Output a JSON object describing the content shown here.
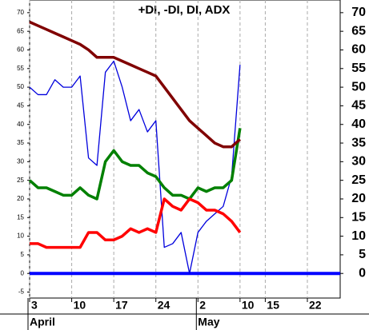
{
  "chart_data": {
    "type": "line",
    "title": "+DI, -DI, DI, ADX",
    "x": [
      0,
      1,
      2,
      3,
      4,
      5,
      6,
      7,
      8,
      9,
      10,
      11,
      12,
      13,
      14,
      15,
      16,
      17,
      18,
      19,
      20,
      21,
      22,
      23,
      24,
      25
    ],
    "series": [
      {
        "color": "#0000dd",
        "values": [
          50,
          48,
          48,
          52,
          50,
          50,
          53,
          31,
          29,
          54,
          57,
          50,
          41,
          44,
          38,
          41,
          7,
          8,
          11,
          0,
          11,
          14,
          16,
          18,
          26,
          56
        ],
        "width": 1.3
      },
      {
        "color": "#008000",
        "values": [
          25,
          23,
          23,
          22,
          21,
          21,
          23,
          21,
          20,
          30,
          33,
          30,
          29,
          29,
          27,
          26,
          23,
          21,
          21,
          20,
          23,
          22,
          23,
          23,
          25,
          39
        ],
        "width": 3.5
      },
      {
        "color": "#ff0000",
        "values": [
          8,
          8,
          7,
          7,
          7,
          7,
          7,
          11,
          11,
          9,
          9,
          10,
          12,
          11,
          12,
          11,
          20,
          18,
          17,
          20,
          19,
          17,
          17,
          16,
          14,
          11
        ],
        "width": 3.5
      },
      {
        "color": "#800000",
        "values": [
          67.5,
          66.5,
          65.5,
          64.5,
          63.5,
          62.5,
          61.5,
          60,
          58,
          58,
          58,
          57,
          56,
          55,
          54,
          53,
          50,
          47,
          44,
          41,
          39,
          37,
          35,
          34,
          34,
          36
        ],
        "width": 3.5
      }
    ],
    "reference_line": {
      "value": 0,
      "color": "#0000ff"
    },
    "xlim": [
      0,
      36.9
    ],
    "xticks": [
      {
        "value": 0,
        "label": "3"
      },
      {
        "value": 5,
        "label": "10"
      },
      {
        "value": 10,
        "label": "17"
      },
      {
        "value": 15,
        "label": "24"
      },
      {
        "value": 20,
        "label": "2"
      },
      {
        "value": 25,
        "label": "10"
      },
      {
        "value": 28,
        "label": "15"
      },
      {
        "value": 33,
        "label": "22"
      }
    ],
    "month_ticks": [
      {
        "value": 0,
        "label": "April"
      },
      {
        "value": 20,
        "label": "May"
      }
    ],
    "ylim": [
      -6.6,
      73.4
    ],
    "yticks": [
      -5,
      0,
      5,
      10,
      15,
      20,
      25,
      30,
      35,
      40,
      45,
      50,
      55,
      60,
      65,
      70
    ],
    "y2lim": [
      -6.6,
      73.4
    ],
    "y2ticks": [
      0,
      5,
      10,
      15,
      20,
      25,
      30,
      35,
      40,
      45,
      50,
      55,
      60,
      65,
      70
    ],
    "grid": true
  }
}
